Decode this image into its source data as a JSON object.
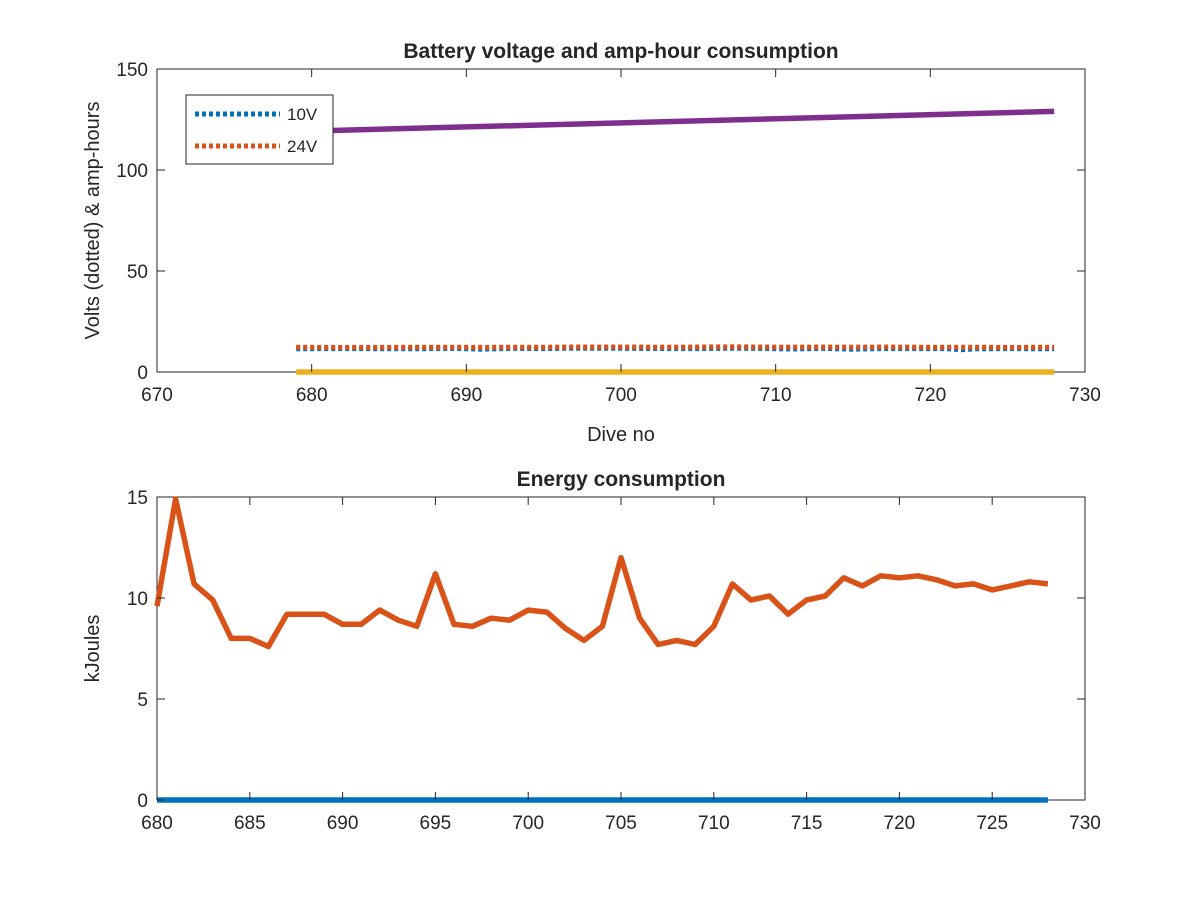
{
  "chart_data": [
    {
      "type": "line",
      "title": "Battery voltage and amp-hour consumption",
      "xlabel": "Dive no",
      "ylabel": "Volts (dotted) & amp-hours",
      "xlim": [
        670,
        730
      ],
      "ylim": [
        0,
        150
      ],
      "xticks": [
        670,
        680,
        690,
        700,
        710,
        720,
        730
      ],
      "yticks": [
        0,
        50,
        100,
        150
      ],
      "grid": false,
      "legend": "top-left",
      "series": [
        {
          "name": "10V",
          "style": "dotted",
          "color": "#0072BD",
          "x": [
            679,
            681,
            683,
            685,
            687,
            689,
            691,
            693,
            695,
            697,
            699,
            701,
            703,
            705,
            707,
            709,
            711,
            713,
            715,
            717,
            719,
            721,
            722,
            723,
            725,
            728
          ],
          "y": [
            11.5,
            11.6,
            11.6,
            11.5,
            11.5,
            11.7,
            11.3,
            11.7,
            11.6,
            11.8,
            11.8,
            11.7,
            11.6,
            11.6,
            11.8,
            11.7,
            11.4,
            11.7,
            11.3,
            11.6,
            11.6,
            11.6,
            11.0,
            11.5,
            11.6,
            11.5
          ]
        },
        {
          "name": "24V",
          "style": "dotted",
          "color": "#D95319",
          "x": [
            679,
            681,
            683,
            685,
            687,
            689,
            691,
            693,
            695,
            697,
            699,
            701,
            703,
            705,
            707,
            709,
            711,
            713,
            715,
            717,
            719,
            721,
            723,
            725,
            728
          ],
          "y": [
            12.3,
            12.2,
            12.2,
            12.2,
            12.3,
            12.3,
            12.2,
            12.3,
            12.3,
            12.4,
            12.4,
            12.4,
            12.3,
            12.4,
            12.5,
            12.4,
            12.3,
            12.4,
            12.3,
            12.4,
            12.3,
            12.3,
            12.3,
            12.2,
            12.3
          ]
        },
        {
          "style": "solid",
          "color": "#EDB120",
          "x": [
            679,
            728
          ],
          "y": [
            0,
            0
          ]
        },
        {
          "style": "solid",
          "color": "#7E2F8E",
          "x": [
            681,
            728
          ],
          "y": [
            119.5,
            129
          ]
        }
      ]
    },
    {
      "type": "line",
      "title": "Energy consumption",
      "xlabel": "",
      "ylabel": "kJoules",
      "xlim": [
        680,
        730
      ],
      "ylim": [
        0,
        15
      ],
      "xticks": [
        680,
        685,
        690,
        695,
        700,
        705,
        710,
        715,
        720,
        725,
        730
      ],
      "yticks": [
        0,
        5,
        10,
        15
      ],
      "grid": false,
      "series": [
        {
          "style": "solid",
          "color": "#0072BD",
          "x": [
            680,
            728
          ],
          "y": [
            0,
            0
          ]
        },
        {
          "style": "solid",
          "color": "#D95319",
          "x": [
            680,
            681,
            682,
            683,
            684,
            685,
            686,
            687,
            688,
            689,
            690,
            691,
            692,
            693,
            694,
            695,
            696,
            697,
            698,
            699,
            700,
            701,
            702,
            703,
            704,
            705,
            706,
            707,
            708,
            709,
            710,
            711,
            712,
            713,
            714,
            715,
            716,
            717,
            718,
            719,
            720,
            721,
            722,
            723,
            724,
            725,
            726,
            727,
            728
          ],
          "y": [
            9.6,
            14.9,
            10.7,
            9.9,
            8.0,
            8.0,
            7.6,
            9.2,
            9.2,
            9.2,
            8.7,
            8.7,
            9.4,
            8.9,
            8.6,
            11.2,
            8.7,
            8.6,
            9.0,
            8.9,
            9.4,
            9.3,
            8.5,
            7.9,
            8.6,
            12.0,
            9.0,
            7.7,
            7.9,
            7.7,
            8.6,
            10.7,
            9.9,
            10.1,
            9.2,
            9.9,
            10.1,
            11.0,
            10.6,
            11.1,
            11.0,
            11.1,
            10.9,
            10.6,
            10.7,
            10.4,
            10.6,
            10.8,
            10.7
          ]
        }
      ]
    }
  ]
}
